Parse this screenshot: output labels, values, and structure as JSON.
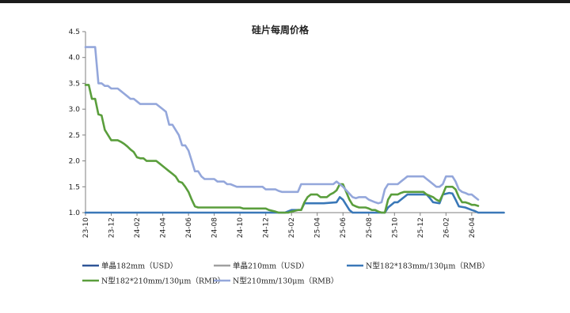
{
  "chart_data": {
    "type": "line",
    "title": "硅片每周价格",
    "xlabel": "",
    "ylabel": "",
    "ylim": [
      1.0,
      4.5
    ],
    "yticks": [
      "1.0",
      "1.5",
      "2.0",
      "2.5",
      "3.0",
      "3.5",
      "4.0",
      "4.5"
    ],
    "xticks": [
      "23-10",
      "23-12",
      "24-02",
      "24-04",
      "24-06",
      "24-08",
      "24-10",
      "24-12",
      "25-02",
      "25-04",
      "25-06",
      "25-08",
      "25-10",
      "25-12",
      "26-02",
      "26-04"
    ],
    "legend_position": "bottom",
    "series": [
      {
        "name": "单晶182mm（USD）",
        "color": "#2f5597",
        "points": []
      },
      {
        "name": "单晶210mm（USD）",
        "color": "#a0a0a0",
        "points": []
      },
      {
        "name": "N型182*183mm/130μm（RMB）",
        "color": "#3a78b8",
        "points": [
          [
            0,
            1.0
          ],
          [
            62,
            1.0
          ],
          [
            64,
            1.05
          ],
          [
            67,
            1.05
          ],
          [
            68,
            1.18
          ],
          [
            72,
            1.18
          ],
          [
            74,
            1.18
          ],
          [
            78,
            1.2
          ],
          [
            79,
            1.3
          ],
          [
            80,
            1.25
          ],
          [
            82,
            1.05
          ],
          [
            83,
            1.0
          ],
          [
            93,
            1.0
          ],
          [
            94,
            1.1
          ],
          [
            95,
            1.15
          ],
          [
            96,
            1.2
          ],
          [
            97,
            1.2
          ],
          [
            98,
            1.25
          ],
          [
            99,
            1.3
          ],
          [
            100,
            1.35
          ],
          [
            102,
            1.35
          ],
          [
            104,
            1.35
          ],
          [
            106,
            1.35
          ],
          [
            107,
            1.28
          ],
          [
            108,
            1.2
          ],
          [
            110,
            1.18
          ],
          [
            111,
            1.35
          ],
          [
            113,
            1.38
          ],
          [
            114,
            1.37
          ],
          [
            115,
            1.25
          ],
          [
            116,
            1.12
          ],
          [
            118,
            1.1
          ],
          [
            120,
            1.05
          ],
          [
            121,
            1.03
          ],
          [
            122,
            1.0
          ],
          [
            130,
            1.0
          ]
        ]
      },
      {
        "name": "N型182*210mm/130μm（RMB）",
        "color": "#5a9e3c",
        "points": [
          [
            0,
            3.47
          ],
          [
            1,
            3.47
          ],
          [
            2,
            3.2
          ],
          [
            3,
            3.2
          ],
          [
            4,
            2.9
          ],
          [
            5,
            2.88
          ],
          [
            6,
            2.6
          ],
          [
            7,
            2.5
          ],
          [
            8,
            2.4
          ],
          [
            9,
            2.4
          ],
          [
            10,
            2.4
          ],
          [
            11,
            2.37
          ],
          [
            12,
            2.33
          ],
          [
            13,
            2.28
          ],
          [
            14,
            2.22
          ],
          [
            15,
            2.17
          ],
          [
            16,
            2.07
          ],
          [
            17,
            2.05
          ],
          [
            18,
            2.05
          ],
          [
            19,
            2.0
          ],
          [
            20,
            2.0
          ],
          [
            21,
            2.0
          ],
          [
            22,
            2.0
          ],
          [
            23,
            1.95
          ],
          [
            24,
            1.9
          ],
          [
            25,
            1.85
          ],
          [
            26,
            1.8
          ],
          [
            27,
            1.75
          ],
          [
            28,
            1.7
          ],
          [
            29,
            1.6
          ],
          [
            30,
            1.58
          ],
          [
            31,
            1.5
          ],
          [
            32,
            1.4
          ],
          [
            33,
            1.25
          ],
          [
            34,
            1.12
          ],
          [
            35,
            1.1
          ],
          [
            48,
            1.1
          ],
          [
            49,
            1.08
          ],
          [
            56,
            1.08
          ],
          [
            57,
            1.05
          ],
          [
            59,
            1.02
          ],
          [
            60,
            1.0
          ],
          [
            63,
            1.0
          ],
          [
            64,
            1.02
          ],
          [
            66,
            1.05
          ],
          [
            67,
            1.05
          ],
          [
            68,
            1.2
          ],
          [
            69,
            1.3
          ],
          [
            70,
            1.35
          ],
          [
            72,
            1.35
          ],
          [
            73,
            1.3
          ],
          [
            75,
            1.3
          ],
          [
            76,
            1.35
          ],
          [
            77,
            1.38
          ],
          [
            78,
            1.43
          ],
          [
            79,
            1.55
          ],
          [
            80,
            1.55
          ],
          [
            81,
            1.4
          ],
          [
            82,
            1.25
          ],
          [
            83,
            1.15
          ],
          [
            84,
            1.12
          ],
          [
            85,
            1.1
          ],
          [
            87,
            1.1
          ],
          [
            88,
            1.08
          ],
          [
            89,
            1.05
          ],
          [
            90,
            1.05
          ],
          [
            91,
            1.02
          ],
          [
            92,
            1.0
          ],
          [
            93,
            1.0
          ],
          [
            94,
            1.25
          ],
          [
            95,
            1.35
          ],
          [
            96,
            1.35
          ],
          [
            97,
            1.35
          ],
          [
            98,
            1.38
          ],
          [
            99,
            1.4
          ],
          [
            105,
            1.4
          ],
          [
            106,
            1.35
          ],
          [
            108,
            1.3
          ],
          [
            109,
            1.25
          ],
          [
            110,
            1.22
          ],
          [
            111,
            1.35
          ],
          [
            112,
            1.5
          ],
          [
            113,
            1.5
          ],
          [
            114,
            1.5
          ],
          [
            115,
            1.45
          ],
          [
            116,
            1.3
          ],
          [
            117,
            1.2
          ],
          [
            118,
            1.2
          ],
          [
            119,
            1.18
          ],
          [
            120,
            1.15
          ],
          [
            121,
            1.15
          ],
          [
            122,
            1.13
          ]
        ]
      },
      {
        "name": "N型210mm/130μm（RMB）",
        "color": "#94a7db",
        "points": [
          [
            0,
            4.2
          ],
          [
            3,
            4.2
          ],
          [
            4,
            3.5
          ],
          [
            5,
            3.5
          ],
          [
            6,
            3.45
          ],
          [
            7,
            3.45
          ],
          [
            8,
            3.4
          ],
          [
            10,
            3.4
          ],
          [
            11,
            3.35
          ],
          [
            12,
            3.3
          ],
          [
            13,
            3.25
          ],
          [
            14,
            3.2
          ],
          [
            15,
            3.2
          ],
          [
            16,
            3.15
          ],
          [
            17,
            3.1
          ],
          [
            22,
            3.1
          ],
          [
            23,
            3.05
          ],
          [
            24,
            3.0
          ],
          [
            25,
            2.95
          ],
          [
            26,
            2.7
          ],
          [
            27,
            2.7
          ],
          [
            28,
            2.6
          ],
          [
            29,
            2.5
          ],
          [
            30,
            2.3
          ],
          [
            31,
            2.3
          ],
          [
            32,
            2.2
          ],
          [
            33,
            2.0
          ],
          [
            34,
            1.8
          ],
          [
            35,
            1.8
          ],
          [
            36,
            1.7
          ],
          [
            37,
            1.65
          ],
          [
            40,
            1.65
          ],
          [
            41,
            1.6
          ],
          [
            43,
            1.6
          ],
          [
            44,
            1.55
          ],
          [
            45,
            1.55
          ],
          [
            47,
            1.5
          ],
          [
            48,
            1.5
          ],
          [
            55,
            1.5
          ],
          [
            56,
            1.45
          ],
          [
            59,
            1.45
          ],
          [
            60,
            1.42
          ],
          [
            61,
            1.4
          ],
          [
            66,
            1.4
          ],
          [
            67,
            1.55
          ],
          [
            77,
            1.55
          ],
          [
            78,
            1.6
          ],
          [
            79,
            1.55
          ],
          [
            80,
            1.5
          ],
          [
            83,
            1.3
          ],
          [
            84,
            1.28
          ],
          [
            85,
            1.3
          ],
          [
            87,
            1.3
          ],
          [
            88,
            1.25
          ],
          [
            90,
            1.2
          ],
          [
            91,
            1.18
          ],
          [
            92,
            1.2
          ],
          [
            93,
            1.45
          ],
          [
            94,
            1.55
          ],
          [
            95,
            1.55
          ],
          [
            97,
            1.55
          ],
          [
            98,
            1.6
          ],
          [
            99,
            1.65
          ],
          [
            100,
            1.7
          ],
          [
            105,
            1.7
          ],
          [
            106,
            1.65
          ],
          [
            107,
            1.6
          ],
          [
            108,
            1.55
          ],
          [
            109,
            1.5
          ],
          [
            110,
            1.5
          ],
          [
            111,
            1.55
          ],
          [
            112,
            1.7
          ],
          [
            113,
            1.7
          ],
          [
            114,
            1.7
          ],
          [
            115,
            1.6
          ],
          [
            116,
            1.45
          ],
          [
            117,
            1.4
          ],
          [
            118,
            1.38
          ],
          [
            119,
            1.35
          ],
          [
            120,
            1.35
          ],
          [
            121,
            1.3
          ],
          [
            122,
            1.25
          ]
        ]
      }
    ]
  }
}
